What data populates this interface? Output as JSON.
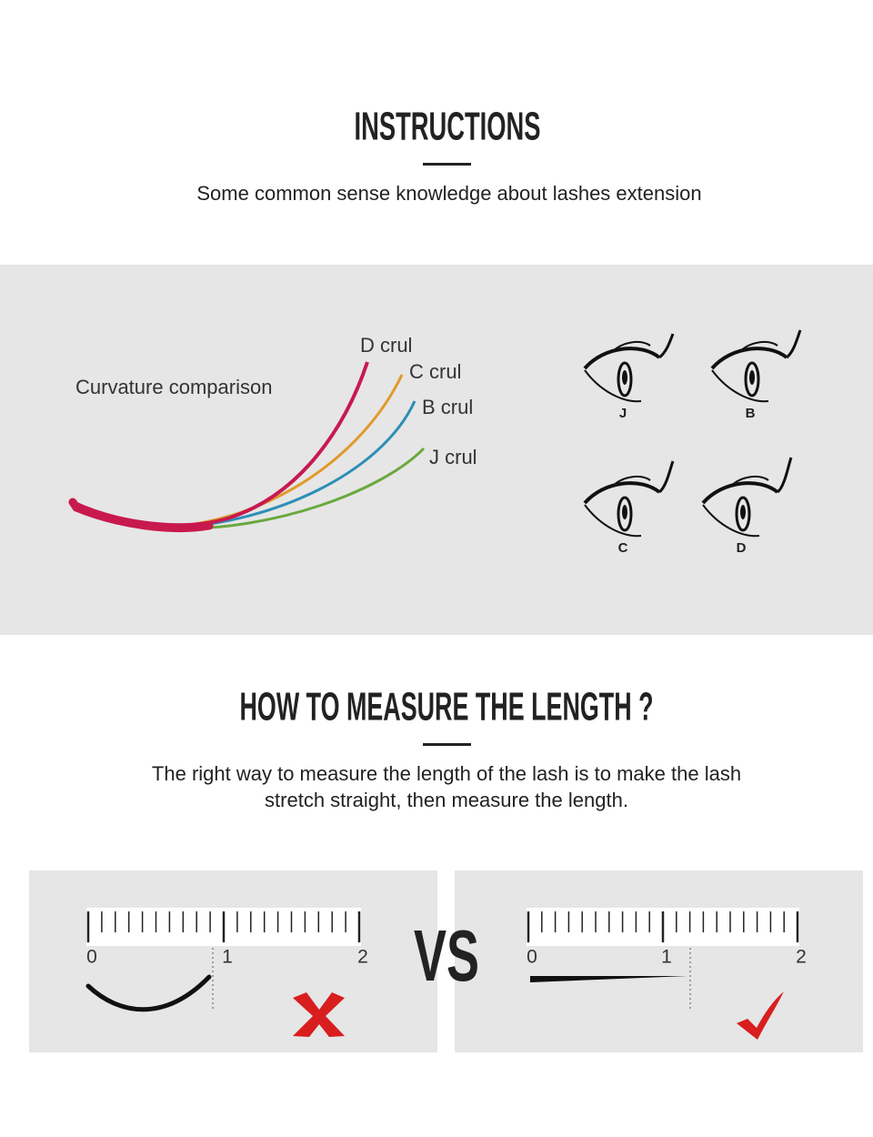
{
  "header": {
    "title": "INSTRUCTIONS",
    "subtitle": "Some common sense knowledge about lashes extension"
  },
  "curvature": {
    "label": "Curvature comparison",
    "curls": [
      "D crul",
      "C crul",
      "B crul",
      "J crul"
    ],
    "eyes": [
      "J",
      "B",
      "C",
      "D"
    ]
  },
  "measure": {
    "title": "HOW TO MEASURE THE LENGTH ?",
    "text": [
      "The right way to measure the length of the lash is to make the lash",
      "stretch straight, then measure the length."
    ],
    "wrong_ruler": [
      "0",
      "1",
      "2"
    ],
    "right_ruler": [
      "0",
      "1",
      "2"
    ],
    "vs": "VS"
  }
}
